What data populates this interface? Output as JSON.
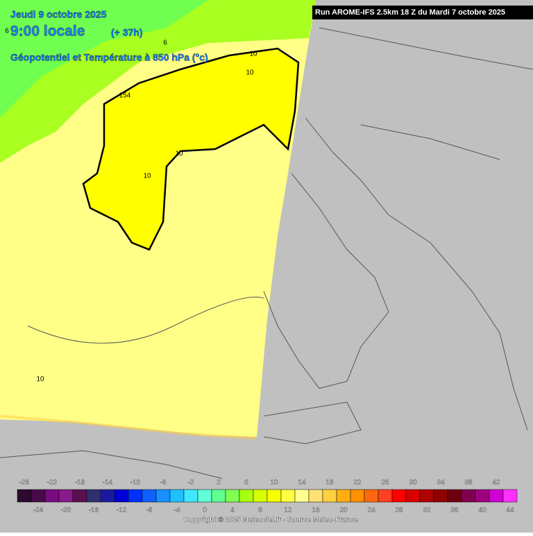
{
  "header": {
    "date": "Jeudi 9 octobre 2025",
    "time": "9:00 locale",
    "lead": "(+ 37h)",
    "field": "Géopotentiel et Température à 850 hPa (°c)",
    "run": "Run AROME-IFS 2.5km 18 Z du Mardi 7 octobre 2025"
  },
  "contour_labels": [
    "6",
    "6",
    "10",
    "10",
    "154",
    "10",
    "10",
    "10"
  ],
  "legend": {
    "ticks": [
      -26,
      -24,
      -22,
      -20,
      -18,
      -16,
      -14,
      -12,
      -10,
      -8,
      -6,
      -4,
      -2,
      0,
      2,
      4,
      6,
      8,
      10,
      12,
      14,
      16,
      18,
      20,
      22,
      24,
      26,
      28,
      30,
      32,
      34,
      36,
      38,
      40,
      42,
      44
    ],
    "colors": [
      "#2d0a30",
      "#4a0a4a",
      "#7a0a80",
      "#8a1a8a",
      "#5a1050",
      "#303070",
      "#1a1aa0",
      "#0000d8",
      "#0030ff",
      "#1060ff",
      "#1890ff",
      "#20c0ff",
      "#40e8ff",
      "#60ffd8",
      "#60ff90",
      "#80ff50",
      "#a8ff10",
      "#d8ff00",
      "#f8ff00",
      "#ffff40",
      "#ffff90",
      "#ffe070",
      "#ffd040",
      "#ffb010",
      "#ff9000",
      "#ff6810",
      "#ff4020",
      "#ff0000",
      "#d80000",
      "#b00000",
      "#900000",
      "#700010",
      "#800050",
      "#a00080",
      "#d000d0",
      "#ff30ff"
    ]
  },
  "footer": {
    "copyright": "Copyright © 2025 Meteociel.fr - Source Meteo-France"
  }
}
